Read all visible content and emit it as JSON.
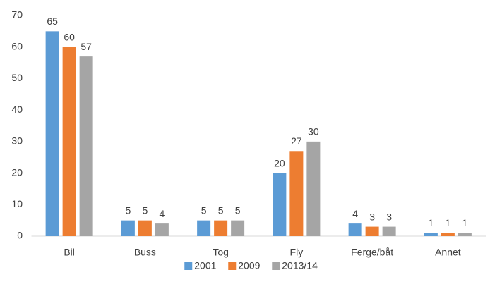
{
  "chart_data": {
    "type": "bar",
    "categories": [
      "Bil",
      "Buss",
      "Tog",
      "Fly",
      "Ferge/båt",
      "Annet"
    ],
    "series": [
      {
        "name": "2001",
        "color": "#5b9bd5",
        "values": [
          65,
          5,
          5,
          20,
          4,
          1
        ]
      },
      {
        "name": "2009",
        "color": "#ed7d31",
        "values": [
          60,
          5,
          5,
          27,
          3,
          1
        ]
      },
      {
        "name": "2013/14",
        "color": "#a5a5a5",
        "values": [
          57,
          4,
          5,
          30,
          3,
          1
        ]
      }
    ],
    "ylim": [
      0,
      70
    ],
    "yticks": [
      0,
      10,
      20,
      30,
      40,
      50,
      60,
      70
    ],
    "grid": false,
    "legend": "bottom"
  }
}
